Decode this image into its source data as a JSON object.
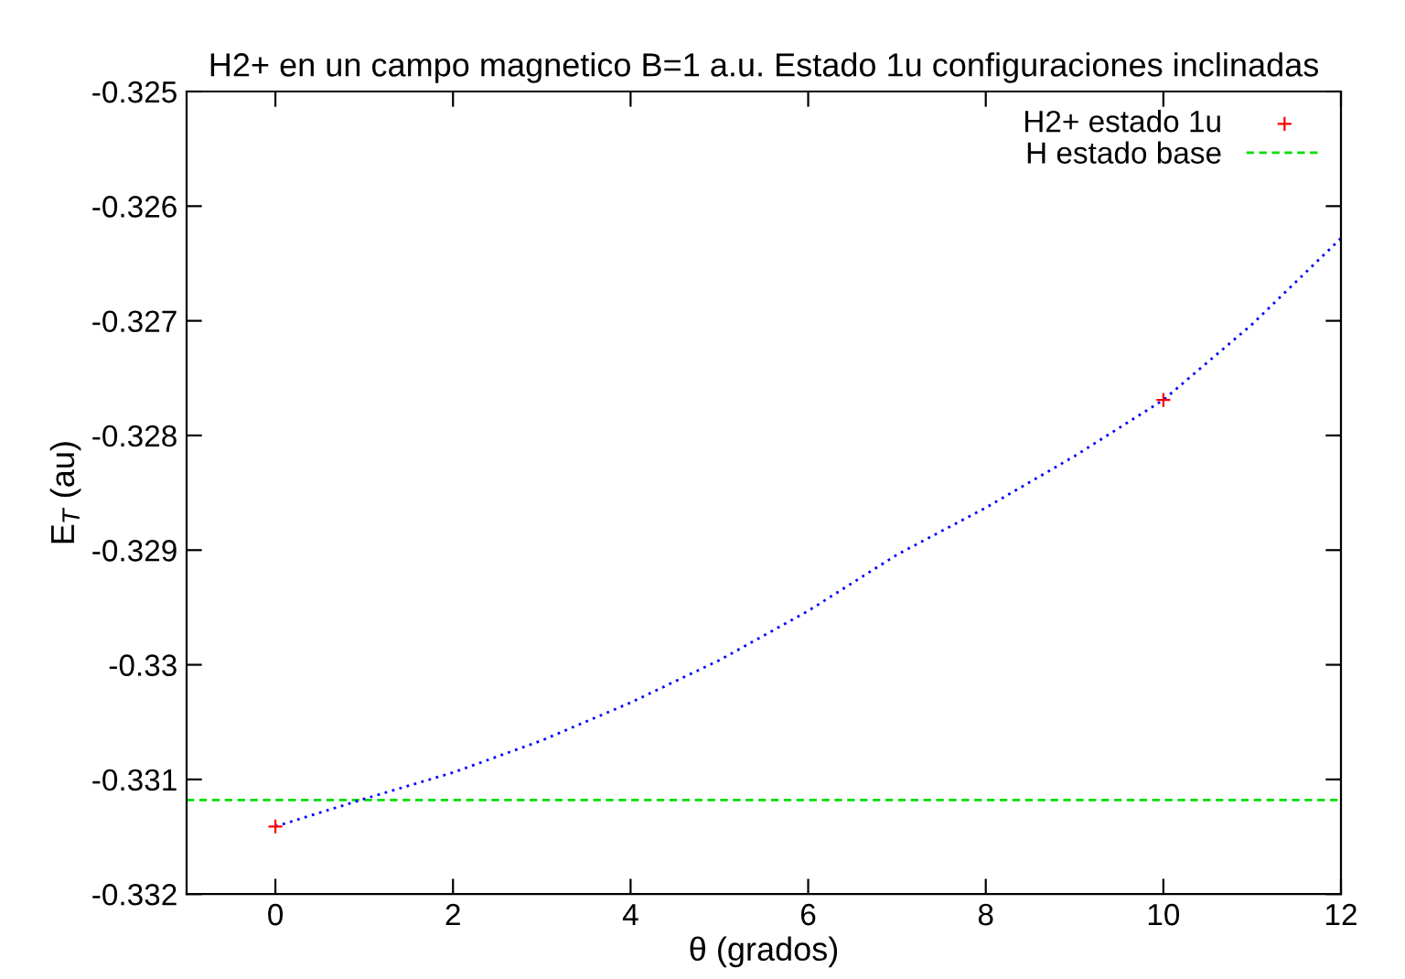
{
  "chart_data": {
    "type": "scatter",
    "title": "H2+ en un campo magnetico B=1 a.u. Estado 1u configuraciones inclinadas",
    "xlabel": "θ (grados)",
    "ylabel": "E$_{T}$ (au)",
    "series": [
      {
        "name": "H2+ estado 1u",
        "marker": "cross",
        "color": "#ff0000",
        "x": [
          0,
          10
        ],
        "values": [
          -0.33141,
          -0.32769
        ]
      },
      {
        "name": "H estado base",
        "type": "line",
        "line_style": "dashed",
        "color": "#00dd00",
        "x": [
          -1,
          12
        ],
        "values": [
          -0.33118,
          -0.33118
        ]
      },
      {
        "type": "line",
        "line_style": "dotted",
        "color": "#0000ff",
        "x": [
          0,
          1,
          2,
          3,
          4,
          5,
          6,
          7,
          8,
          9,
          10,
          11,
          12
        ],
        "values": [
          -0.33141,
          -0.33117,
          -0.33094,
          -0.33066,
          -0.33033,
          -0.32996,
          -0.32953,
          -0.32904,
          -0.32863,
          -0.32818,
          -0.32769,
          -0.32703,
          -0.32628
        ]
      }
    ],
    "xlim": [
      -1,
      12
    ],
    "xticks": [
      0,
      2,
      4,
      6,
      8,
      10,
      12
    ],
    "ylim": [
      -0.332,
      -0.325
    ],
    "yticks": [
      -0.332,
      -0.331,
      -0.33,
      -0.329,
      -0.328,
      -0.327,
      -0.326,
      -0.325
    ],
    "legend": "top right",
    "grid": false
  }
}
